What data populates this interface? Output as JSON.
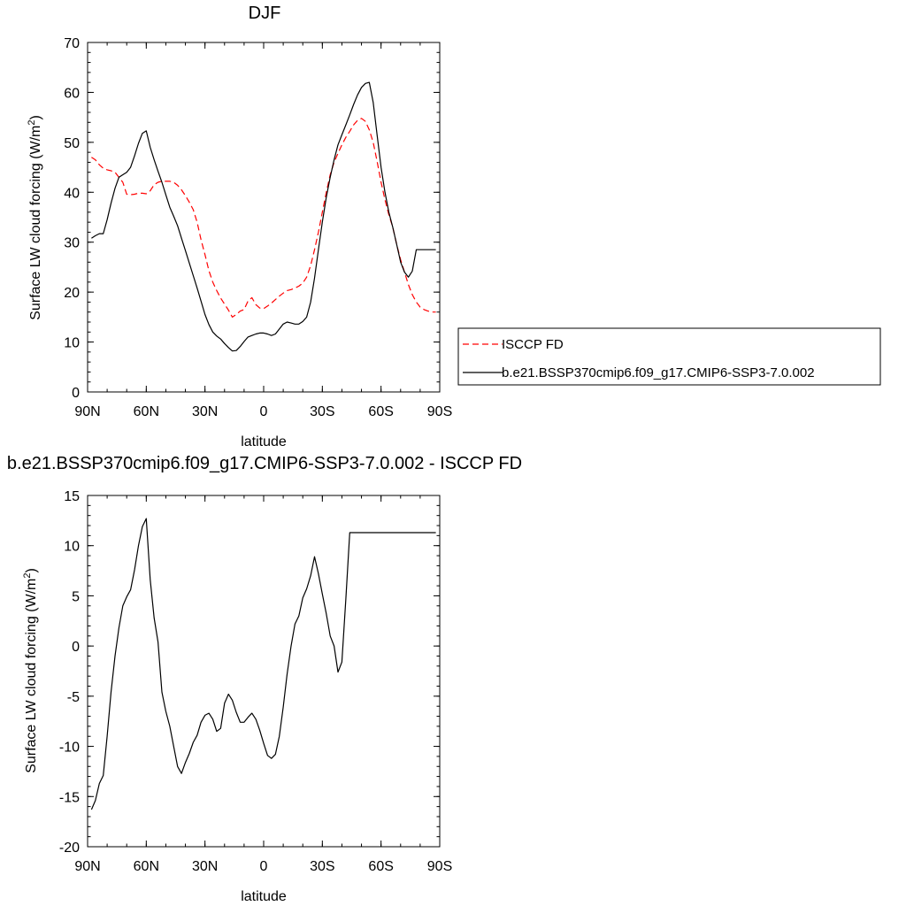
{
  "chart_data": [
    {
      "type": "line",
      "title": "DJF",
      "xlabel": "latitude",
      "ylabel": "Surface LW cloud forcing (W/m",
      "ylabel_sup": "2",
      "ylabel_tail": ")",
      "xlim": [
        90,
        -90
      ],
      "ylim": [
        0,
        70
      ],
      "xticks": [
        {
          "v": 90,
          "label": "90N"
        },
        {
          "v": 60,
          "label": "60N"
        },
        {
          "v": 30,
          "label": "30N"
        },
        {
          "v": 0,
          "label": "0"
        },
        {
          "v": -30,
          "label": "30S"
        },
        {
          "v": -60,
          "label": "60S"
        },
        {
          "v": -90,
          "label": "90S"
        }
      ],
      "yticks": [
        0,
        10,
        20,
        30,
        40,
        50,
        60,
        70
      ],
      "legend": {
        "placement": "right"
      },
      "series": [
        {
          "name": "ISCCP FD",
          "color": "#ff0000",
          "dash": true,
          "x": [
            88,
            86,
            84,
            82,
            80,
            78,
            76,
            74,
            72,
            70,
            68,
            66,
            64,
            62,
            60,
            58,
            56,
            54,
            52,
            50,
            48,
            46,
            44,
            42,
            40,
            38,
            36,
            34,
            32,
            30,
            28,
            26,
            24,
            22,
            20,
            18,
            16,
            14,
            12,
            10,
            8,
            6,
            4,
            2,
            0,
            -2,
            -4,
            -6,
            -8,
            -10,
            -12,
            -14,
            -16,
            -18,
            -20,
            -22,
            -24,
            -26,
            -28,
            -30,
            -32,
            -34,
            -36,
            -38,
            -40,
            -42,
            -44,
            -46,
            -48,
            -50,
            -52,
            -54,
            -56,
            -58,
            -60,
            -62,
            -64,
            -66,
            -68,
            -70,
            -72,
            -74,
            -76,
            -78,
            -80,
            -82,
            -84,
            -86,
            -88
          ],
          "y": [
            47,
            46.5,
            45.5,
            44.8,
            44.5,
            44.3,
            44,
            43,
            42,
            39.6,
            39.5,
            39.6,
            39.8,
            39.8,
            39.7,
            40.3,
            41.5,
            42,
            42.2,
            42.2,
            42.2,
            42,
            41.4,
            40.5,
            39.3,
            38,
            36.5,
            34,
            30.5,
            27.5,
            24.3,
            22,
            20.3,
            18.8,
            17.6,
            16.4,
            15,
            15.5,
            16.2,
            16.5,
            18.2,
            18.9,
            17.5,
            16.8,
            16.7,
            17.2,
            17.8,
            18.5,
            19.2,
            19.8,
            20.3,
            20.5,
            20.8,
            21.2,
            21.8,
            23,
            25.3,
            28.5,
            32,
            36,
            40,
            43.5,
            46,
            47.8,
            49.5,
            51,
            52.2,
            53.5,
            54.4,
            54.8,
            54.2,
            52.5,
            50,
            46.2,
            42,
            38.5,
            35.5,
            33,
            29.5,
            26.5,
            24,
            21.5,
            19.5,
            18,
            17,
            16.5,
            16.2,
            16.0,
            16.0
          ]
        },
        {
          "name": "b.e21.BSSP370cmip6.f09_g17.CMIP6-SSP3-7.0.002",
          "color": "#000000",
          "dash": false,
          "x": [
            88,
            86,
            84,
            82,
            80,
            78,
            76,
            74,
            72,
            70,
            68,
            66,
            64,
            62,
            60,
            58,
            56,
            54,
            52,
            50,
            48,
            46,
            44,
            42,
            40,
            38,
            36,
            34,
            32,
            30,
            28,
            26,
            24,
            22,
            20,
            18,
            16,
            14,
            12,
            10,
            8,
            6,
            4,
            2,
            0,
            -2,
            -4,
            -6,
            -8,
            -10,
            -12,
            -14,
            -16,
            -18,
            -20,
            -22,
            -24,
            -26,
            -28,
            -30,
            -32,
            -34,
            -36,
            -38,
            -40,
            -42,
            -44,
            -46,
            -48,
            -50,
            -52,
            -54,
            -56,
            -58,
            -60,
            -62,
            -64,
            -66,
            -68,
            -70,
            -72,
            -74,
            -76,
            -78,
            -80,
            -82,
            -84,
            -86,
            -88
          ],
          "y": [
            30.8,
            31.3,
            31.7,
            31.7,
            34.5,
            37.8,
            40.8,
            43,
            43.5,
            44,
            45,
            47.3,
            49.8,
            51.8,
            52.3,
            49,
            46.5,
            44.2,
            42,
            39.5,
            37,
            35.2,
            33.3,
            30.8,
            28.3,
            25.8,
            23.3,
            20.8,
            18.2,
            15.5,
            13.5,
            12,
            11.2,
            10.6,
            9.7,
            8.9,
            8.2,
            8.3,
            9.1,
            10.1,
            11,
            11.3,
            11.6,
            11.8,
            11.8,
            11.6,
            11.3,
            11.6,
            12.6,
            13.6,
            14,
            13.8,
            13.6,
            13.6,
            14.1,
            15,
            18,
            22.8,
            28.5,
            34,
            39,
            43,
            46.5,
            49.5,
            51.5,
            53.5,
            55.5,
            57.6,
            59.5,
            61,
            61.8,
            62,
            58,
            51.5,
            45,
            40,
            36,
            33,
            29.5,
            26,
            24,
            23,
            24.2,
            28.5,
            28.5,
            28.5,
            28.5,
            28.5,
            28.5
          ]
        }
      ]
    },
    {
      "type": "line",
      "title": "b.e21.BSSP370cmip6.f09_g17.CMIP6-SSP3-7.0.002 - ISCCP FD",
      "xlabel": "latitude",
      "ylabel": "Surface LW cloud forcing (W/m",
      "ylabel_sup": "2",
      "ylabel_tail": ")",
      "xlim": [
        90,
        -90
      ],
      "ylim": [
        -20,
        15
      ],
      "xticks": [
        {
          "v": 90,
          "label": "90N"
        },
        {
          "v": 60,
          "label": "60N"
        },
        {
          "v": 30,
          "label": "30N"
        },
        {
          "v": 0,
          "label": "0"
        },
        {
          "v": -30,
          "label": "30S"
        },
        {
          "v": -60,
          "label": "60S"
        },
        {
          "v": -90,
          "label": "90S"
        }
      ],
      "yticks": [
        -20,
        -15,
        -10,
        -5,
        0,
        5,
        10,
        15
      ],
      "series": [
        {
          "color": "#000000",
          "dash": false,
          "x": [
            88,
            86,
            84,
            82,
            80,
            78,
            76,
            74,
            72,
            70,
            68,
            66,
            64,
            62,
            60,
            58,
            56,
            54,
            52,
            50,
            48,
            46,
            44,
            42,
            40,
            38,
            36,
            34,
            32,
            30,
            28,
            26,
            24,
            22,
            20,
            18,
            16,
            14,
            12,
            10,
            8,
            6,
            4,
            2,
            0,
            -2,
            -4,
            -6,
            -8,
            -10,
            -12,
            -14,
            -16,
            -18,
            -20,
            -22,
            -24,
            -26,
            -28,
            -30,
            -32,
            -34,
            -36,
            -38,
            -40,
            -42,
            -44,
            -46,
            -48,
            -50,
            -52,
            -54,
            -56,
            -58,
            -60,
            -62,
            -64,
            -66,
            -68,
            -70,
            -72,
            -74,
            -76,
            -78,
            -80,
            -82,
            -84,
            -86,
            -88
          ],
          "y": [
            -16.3,
            -15.4,
            -13.7,
            -12.9,
            -9,
            -4.6,
            -1,
            1.8,
            4,
            4.9,
            5.6,
            7.6,
            10,
            11.9,
            12.7,
            6.6,
            2.8,
            0.4,
            -4.6,
            -6.5,
            -8,
            -10,
            -12,
            -12.7,
            -11.6,
            -10.7,
            -9.6,
            -8.9,
            -7.6,
            -6.9,
            -6.7,
            -7.3,
            -8.5,
            -8.2,
            -5.7,
            -4.8,
            -5.4,
            -6.6,
            -7.6,
            -7.6,
            -7.1,
            -6.7,
            -7.3,
            -8.4,
            -9.7,
            -10.9,
            -11.2,
            -10.8,
            -9,
            -6.1,
            -2.8,
            0,
            2.2,
            3,
            4.8,
            5.7,
            7,
            8.9,
            7.2,
            5.2,
            3.2,
            1,
            0,
            -2.6,
            -1.6,
            4.7,
            11.3,
            11.3,
            11.3,
            11.3,
            11.3,
            11.3,
            11.3,
            11.3,
            11.3,
            11.3,
            11.3,
            11.3,
            11.3,
            11.3,
            11.3,
            11.3,
            11.3,
            11.3,
            11.3,
            11.3,
            11.3,
            11.3,
            11.3
          ]
        }
      ]
    }
  ]
}
